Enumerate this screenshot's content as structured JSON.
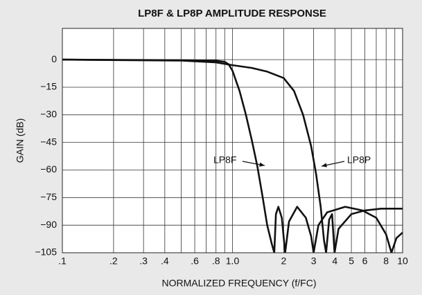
{
  "chart_data": {
    "type": "line",
    "title": "LP8F & LP8P AMPLITUDE RESPONSE",
    "xlabel": "NORMALIZED FREQUENCY (f/FC)",
    "ylabel": "GAIN (dB)",
    "xscale": "log",
    "xlim": [
      0.1,
      10
    ],
    "ylim": [
      -105,
      17
    ],
    "xticks": [
      {
        "value": 0.1,
        "label": ".1"
      },
      {
        "value": 0.2,
        "label": ".2"
      },
      {
        "value": 0.3,
        "label": ".3"
      },
      {
        "value": 0.4,
        "label": ".4"
      },
      {
        "value": 0.6,
        "label": ".6"
      },
      {
        "value": 0.8,
        "label": ".8"
      },
      {
        "value": 1,
        "label": "1.0"
      },
      2,
      3,
      4,
      5,
      6,
      8,
      10
    ],
    "xgrid": [
      0.1,
      0.2,
      0.3,
      0.4,
      0.5,
      0.6,
      0.7,
      0.8,
      0.9,
      1,
      2,
      3,
      4,
      5,
      6,
      7,
      8,
      9,
      10
    ],
    "yticks": [
      0,
      {
        "value": -15,
        "label": "−15"
      },
      {
        "value": -30,
        "label": "−30"
      },
      {
        "value": -45,
        "label": "−45"
      },
      {
        "value": -60,
        "label": "−60"
      },
      {
        "value": -75,
        "label": "−75"
      },
      {
        "value": -90,
        "label": "−90"
      },
      {
        "value": -105,
        "label": "−105"
      }
    ],
    "grid": true,
    "series": [
      {
        "name": "LP8F",
        "color": "#111111",
        "x": [
          0.1,
          0.5,
          0.8,
          0.9,
          0.95,
          1.0,
          1.1,
          1.2,
          1.3,
          1.4,
          1.5,
          1.6,
          1.7,
          1.76,
          1.8,
          1.86,
          1.95,
          2.04,
          2.15,
          2.4,
          2.7,
          2.9,
          3.0,
          3.2,
          3.6,
          4.6,
          5.8,
          7.0,
          8.0,
          8.6,
          9.2,
          10
        ],
        "values": [
          0,
          -0.3,
          -0.6,
          -1.2,
          -2.5,
          -6,
          -17,
          -30,
          -44,
          -58,
          -74,
          -90,
          -100,
          -105,
          -84,
          -80,
          -86,
          -105,
          -88,
          -80,
          -86,
          -96,
          -105,
          -90,
          -83,
          -80,
          -82,
          -86,
          -95,
          -105,
          -97,
          -94
        ]
      },
      {
        "name": "LP8P",
        "color": "#111111",
        "x": [
          0.1,
          0.5,
          0.8,
          1.0,
          1.3,
          1.6,
          2.0,
          2.3,
          2.6,
          2.9,
          3.1,
          3.3,
          3.45,
          3.55,
          3.7,
          3.85,
          3.98,
          4.2,
          5.0,
          6.0,
          7.5,
          8.5,
          9.0,
          10
        ],
        "values": [
          0,
          -0.5,
          -1.5,
          -3,
          -4.5,
          -6.5,
          -10,
          -17,
          -30,
          -47,
          -62,
          -80,
          -98,
          -105,
          -87,
          -84,
          -105,
          -92,
          -84,
          -82,
          -81,
          -81,
          -81,
          -81
        ]
      }
    ]
  }
}
